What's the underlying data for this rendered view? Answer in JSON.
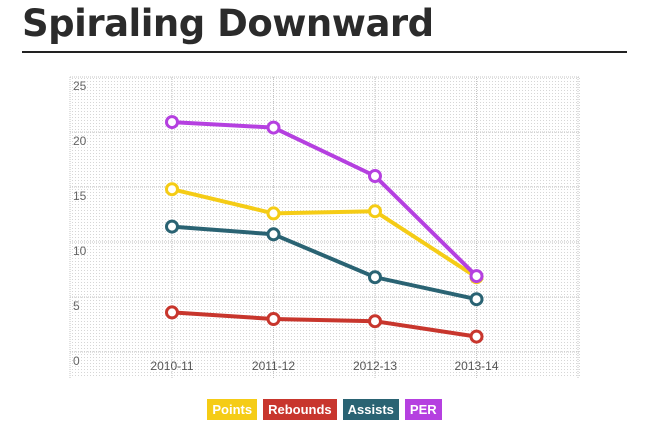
{
  "title": "Spiraling Downward",
  "chart_data": {
    "type": "line",
    "categories": [
      "2010-11",
      "2011-12",
      "2012-13",
      "2013-14"
    ],
    "ylim": [
      0,
      25
    ],
    "y_ticks": [
      0,
      5,
      10,
      15,
      20,
      25
    ],
    "grid": true,
    "legend_placement": "bottom-center",
    "series": [
      {
        "name": "Points",
        "color": "#f5cc16",
        "values": [
          14.8,
          12.6,
          12.8,
          6.8
        ]
      },
      {
        "name": "Rebounds",
        "color": "#c8362d",
        "values": [
          3.6,
          3.0,
          2.8,
          1.4
        ]
      },
      {
        "name": "Assists",
        "color": "#2a6373",
        "values": [
          11.4,
          10.7,
          6.8,
          4.8
        ]
      },
      {
        "name": "PER",
        "color": "#b540e0",
        "values": [
          20.9,
          20.4,
          16.0,
          6.9
        ]
      }
    ]
  }
}
